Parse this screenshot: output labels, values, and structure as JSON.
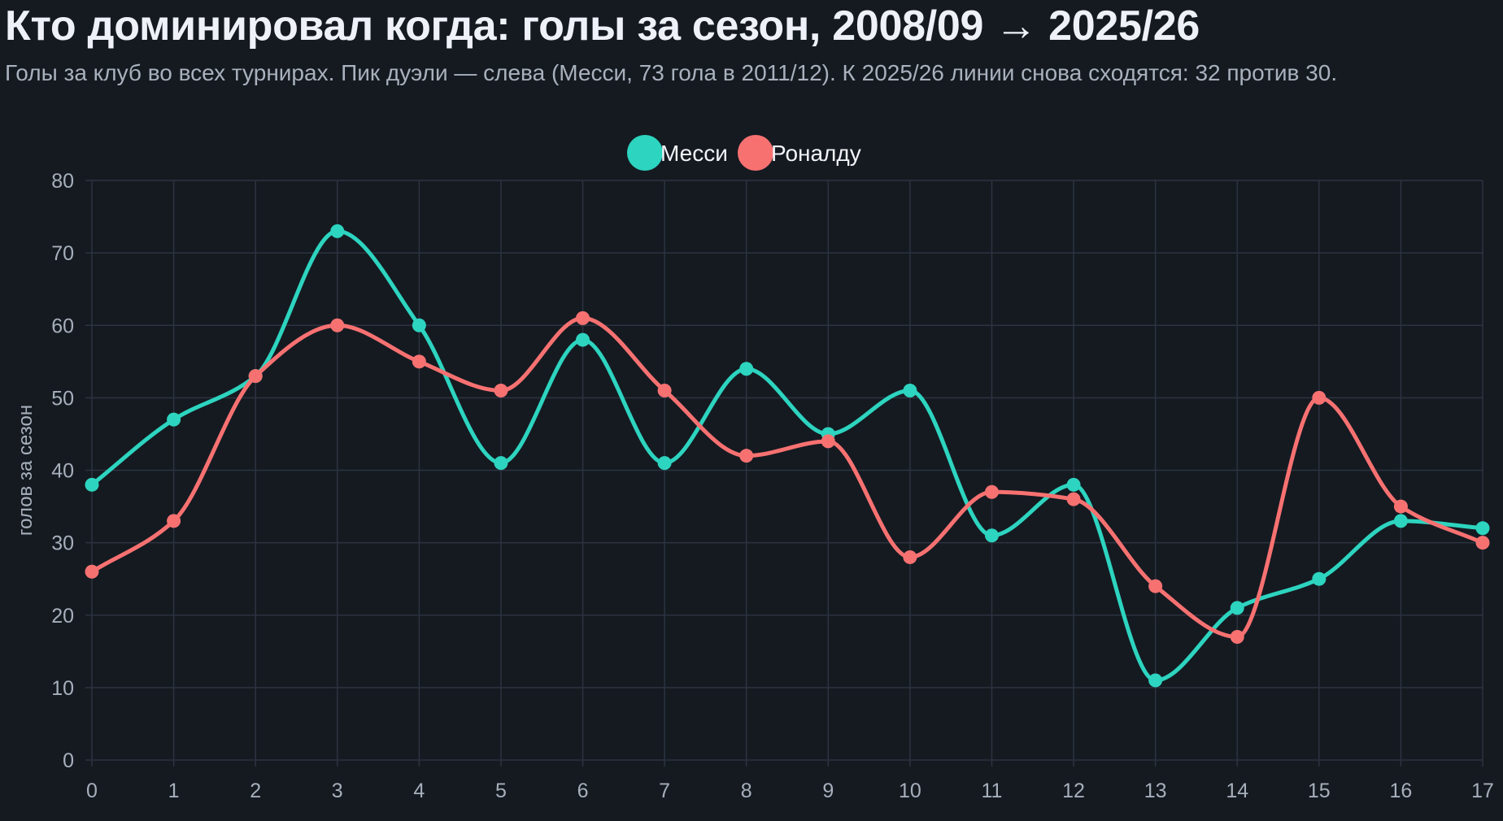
{
  "header": {
    "title": "Кто доминировал когда: голы за сезон, 2008/09 → 2025/26",
    "subtitle": "Голы за клуб во всех турнирах. Пик дуэли — слева (Месси, 73 гола в 2011/12). К 2025/26 линии снова сходятся: 32 против 30."
  },
  "colors": {
    "background": "#151a21",
    "grid": "#2c3340",
    "messi": "#2dd4bf",
    "ronaldo": "#f87171"
  },
  "chart_data": {
    "type": "line",
    "x": [
      0,
      1,
      2,
      3,
      4,
      5,
      6,
      7,
      8,
      9,
      10,
      11,
      12,
      13,
      14,
      15,
      16,
      17
    ],
    "series": [
      {
        "name": "Месси",
        "color": "#2dd4bf",
        "values": [
          38,
          47,
          53,
          73,
          60,
          41,
          58,
          41,
          54,
          45,
          51,
          31,
          38,
          11,
          21,
          25,
          33,
          32
        ]
      },
      {
        "name": "Роналду",
        "color": "#f87171",
        "values": [
          26,
          33,
          53,
          60,
          55,
          51,
          61,
          51,
          42,
          44,
          28,
          37,
          36,
          24,
          17,
          50,
          35,
          30
        ]
      }
    ],
    "ylabel": "голов за сезон",
    "xlabel": "",
    "ylim": [
      0,
      80
    ],
    "yticks": [
      0,
      10,
      20,
      30,
      40,
      50,
      60,
      70,
      80
    ],
    "xticks": [
      "0",
      "1",
      "2",
      "3",
      "4",
      "5",
      "6",
      "7",
      "8",
      "9",
      "10",
      "11",
      "12",
      "13",
      "14",
      "15",
      "16",
      "17"
    ],
    "legend_position": "top-center",
    "grid": true,
    "smooth": true
  }
}
